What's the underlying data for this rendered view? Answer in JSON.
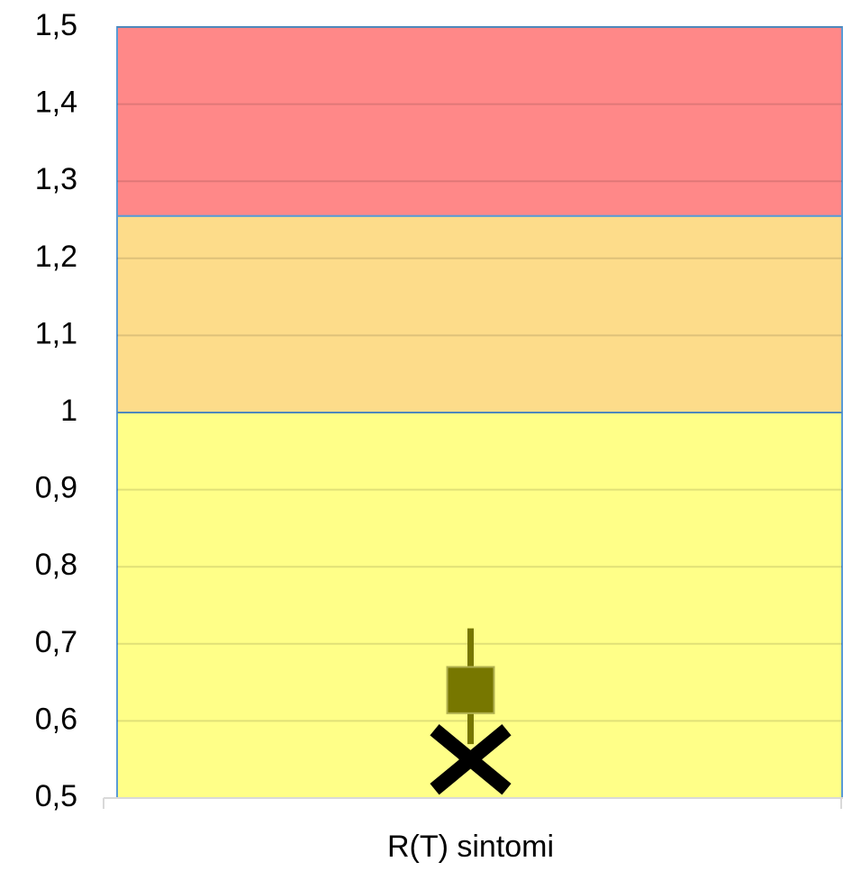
{
  "chart_data": {
    "type": "stock",
    "categories": [
      "R(T) sintomi"
    ],
    "bands": [
      {
        "color": "#ffff88",
        "values": [
          1
        ]
      },
      {
        "color": "#fddc8a",
        "values": [
          0.255
        ]
      },
      {
        "color": "#ff8888",
        "values": [
          0.245
        ]
      }
    ],
    "candles": [
      {
        "open": 0.61,
        "close": 0.67,
        "high": 0.72,
        "low": 0.57,
        "color": "#777700"
      }
    ],
    "markers": {
      "color": "#000000",
      "values": [
        0.55
      ]
    },
    "ylim": [
      0.5,
      1.5
    ],
    "yticks": [
      {
        "value": 0.5,
        "label": "0,5"
      },
      {
        "value": 0.6,
        "label": "0,6"
      },
      {
        "value": 0.7,
        "label": "0,7"
      },
      {
        "value": 0.8,
        "label": "0,8"
      },
      {
        "value": 0.9,
        "label": "0,9"
      },
      1,
      {
        "value": 1.1,
        "label": "1,1"
      },
      {
        "value": 1.2,
        "label": "1,2"
      },
      {
        "value": 1.3,
        "label": "1,3"
      },
      {
        "value": 1.4,
        "label": "1,4"
      },
      {
        "value": 1.5,
        "label": "1,5"
      }
    ],
    "grid": true
  }
}
